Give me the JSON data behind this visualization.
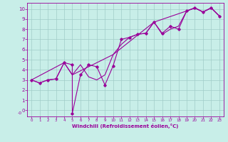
{
  "xlabel": "Windchill (Refroidissement éolien,°C)",
  "bg_color": "#c8eee8",
  "grid_color": "#a0ccc8",
  "line_color": "#990099",
  "xlim": [
    -0.5,
    23.5
  ],
  "ylim": [
    -0.6,
    10.6
  ],
  "xticks": [
    0,
    1,
    2,
    3,
    4,
    5,
    6,
    7,
    8,
    9,
    10,
    11,
    12,
    13,
    14,
    15,
    16,
    17,
    18,
    19,
    20,
    21,
    22,
    23
  ],
  "yticks": [
    0,
    1,
    2,
    3,
    4,
    5,
    6,
    7,
    8,
    9,
    10
  ],
  "line1_x": [
    0,
    1,
    2,
    3,
    4,
    5,
    5,
    6,
    7,
    8,
    9,
    10,
    11,
    12,
    13,
    14,
    15,
    16,
    17,
    18,
    19,
    20,
    21,
    22,
    23
  ],
  "line1_y": [
    3.0,
    2.7,
    3.0,
    3.1,
    4.7,
    4.5,
    -0.3,
    3.5,
    4.5,
    4.3,
    2.5,
    4.4,
    7.0,
    7.2,
    7.5,
    7.6,
    8.7,
    7.6,
    8.3,
    8.0,
    9.8,
    10.1,
    9.7,
    10.1,
    9.3
  ],
  "line2_x": [
    0,
    1,
    2,
    3,
    4,
    5,
    6,
    7,
    8,
    9,
    10,
    11,
    12,
    13,
    14,
    15,
    16,
    17,
    18,
    19,
    20,
    21,
    22,
    23
  ],
  "line2_y": [
    3.0,
    2.7,
    3.0,
    3.1,
    4.7,
    3.5,
    4.5,
    3.3,
    3.0,
    3.5,
    5.5,
    6.5,
    7.2,
    7.5,
    7.6,
    8.7,
    7.5,
    8.0,
    8.3,
    9.8,
    10.1,
    9.7,
    10.1,
    9.3
  ],
  "line3_x": [
    0,
    4,
    5,
    10,
    15,
    19,
    20,
    21,
    22,
    23
  ],
  "line3_y": [
    3.0,
    4.7,
    3.5,
    5.5,
    8.7,
    9.8,
    10.1,
    9.7,
    10.1,
    9.3
  ]
}
